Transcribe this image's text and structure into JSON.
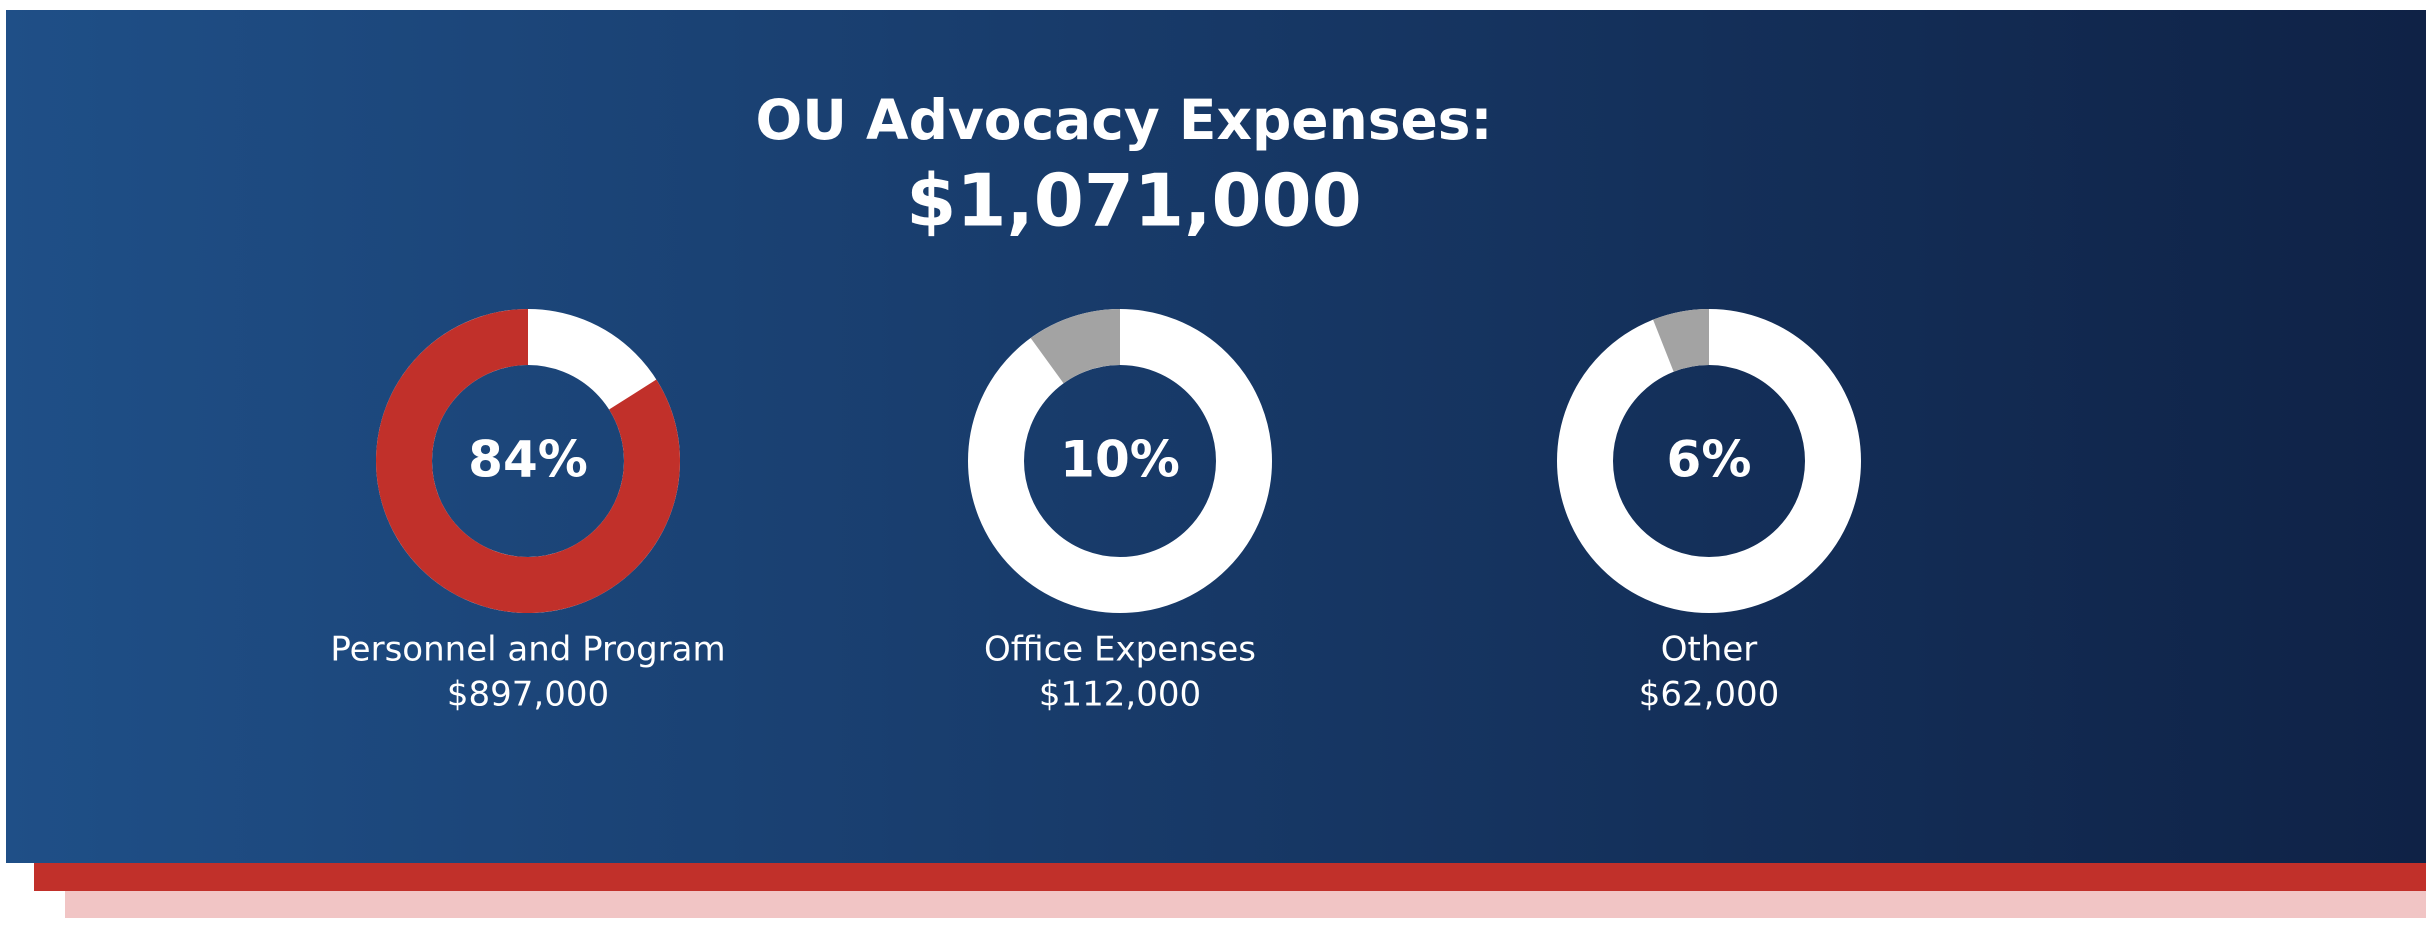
{
  "title": "OU Advocacy Expenses:",
  "total": "$1,071,000",
  "chart_data": [
    {
      "type": "donut",
      "values": [
        84
      ],
      "value_labels": [
        "84%"
      ],
      "label": "Personnel and Program",
      "amount": "$897,000",
      "color": "#c1302a",
      "rest_color": "#ffffff"
    },
    {
      "type": "donut",
      "values": [
        10
      ],
      "value_labels": [
        "10%"
      ],
      "label": "Office Expenses",
      "amount": "$112,000",
      "color": "#a3a3a3",
      "rest_color": "#ffffff"
    },
    {
      "type": "donut",
      "values": [
        6
      ],
      "value_labels": [
        "6%"
      ],
      "label": "Other",
      "amount": "$62,000",
      "color": "#a3a3a3",
      "rest_color": "#ffffff"
    }
  ]
}
